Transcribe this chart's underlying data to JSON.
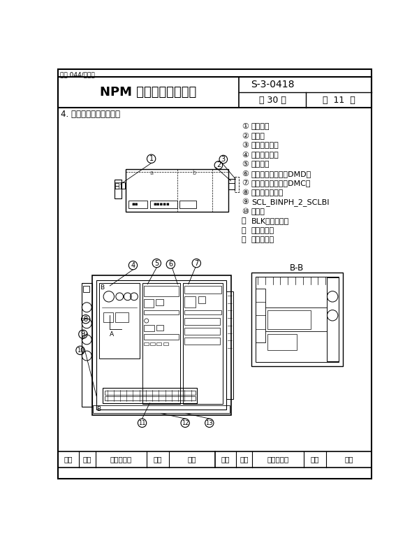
{
  "page_bg": "#ffffff",
  "border_color": "#000000",
  "text_color": "#000000",
  "header": {
    "small_text": "技表 044/第二版",
    "title": "NPM 电梯安装调试说明",
    "code": "S-3-0418",
    "pages": "共 30 页",
    "page_num": "第  11  页"
  },
  "section_title": "4. 轿顶电器箱元件布置图",
  "legend_items": [
    {
      "num": "①",
      "text": "闸刀开关"
    },
    {
      "num": "②",
      "text": "蜂鸣器"
    },
    {
      "num": "③",
      "text": "高响度蜂鸣器"
    },
    {
      "num": "④",
      "text": "开关按钮组件"
    },
    {
      "num": "⑤",
      "text": "放电电阻"
    },
    {
      "num": "⑥",
      "text": "门机驱动电子板（DMD）"
    },
    {
      "num": "⑦",
      "text": "门机控制电子板（DMC）"
    },
    {
      "num": "⑧",
      "text": "语音报站电子板"
    },
    {
      "num": "⑨",
      "text": "SCL_BINPH_2_SCLBI"
    },
    {
      "num": "⑩",
      "text": "蓄电池"
    },
    {
      "num": "⑪",
      "text": "BLK双层端子排"
    },
    {
      "num": "⑫",
      "text": "对讲机电源"
    },
    {
      "num": "⑬",
      "text": "停电灯电源"
    }
  ],
  "bb_label": "B-B",
  "footer_cols": [
    "标记",
    "处数",
    "更改文件号",
    "签字",
    "日期",
    "标记",
    "处数",
    "更改文件号",
    "签字",
    "日期"
  ]
}
